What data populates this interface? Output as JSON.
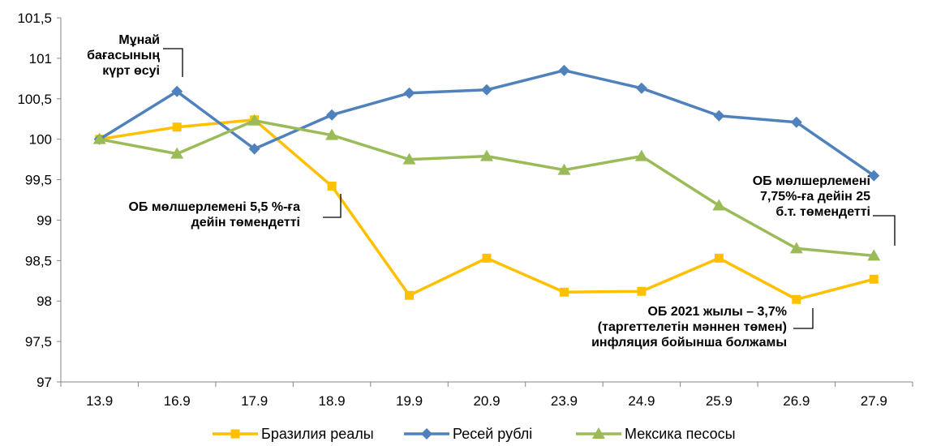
{
  "chart_data": {
    "type": "line",
    "categories": [
      "13.9",
      "16.9",
      "17.9",
      "18.9",
      "19.9",
      "20.9",
      "23.9",
      "24.9",
      "25.9",
      "26.9",
      "27.9"
    ],
    "ylim": [
      97,
      101.5
    ],
    "yticks": [
      97,
      97.5,
      98,
      98.5,
      99,
      99.5,
      100,
      100.5,
      101,
      101.5
    ],
    "ytick_labels": [
      "97",
      "97,5",
      "98",
      "98,5",
      "99",
      "99,5",
      "100",
      "100,5",
      "101",
      "101,5"
    ],
    "grid": false,
    "legend_position": "bottom",
    "series": [
      {
        "name": "Бразилия реалы",
        "color": "#FFC000",
        "marker": "square",
        "values": [
          100.0,
          100.15,
          100.24,
          99.42,
          98.07,
          98.53,
          98.11,
          98.12,
          98.53,
          98.02,
          98.27
        ]
      },
      {
        "name": "Ресей рублі",
        "color": "#4F81BD",
        "marker": "diamond",
        "values": [
          100.0,
          100.59,
          99.88,
          100.3,
          100.57,
          100.61,
          100.85,
          100.63,
          100.29,
          100.21,
          99.55
        ]
      },
      {
        "name": "Мексика песосы",
        "color": "#9BBB59",
        "marker": "triangle",
        "values": [
          100.0,
          99.82,
          100.23,
          100.05,
          99.75,
          99.79,
          99.62,
          99.79,
          99.18,
          98.65,
          98.56
        ]
      }
    ],
    "annotations": [
      {
        "lines": [
          "Мұнай",
          "бағасының",
          "күрт өсуі"
        ]
      },
      {
        "lines": [
          "ОБ мөлшерлемені 5,5 %-ға",
          "дейін төмендетті"
        ]
      },
      {
        "lines": [
          "ОБ  мөлшерлемені",
          "7,75%-ға дейін 25",
          "б.т. төмендетті"
        ]
      },
      {
        "lines": [
          "ОБ  2021  жылы – 3,7%",
          "(таргеттелетін мәннен төмен)",
          "инфляция бойынша болжамы"
        ]
      }
    ]
  }
}
